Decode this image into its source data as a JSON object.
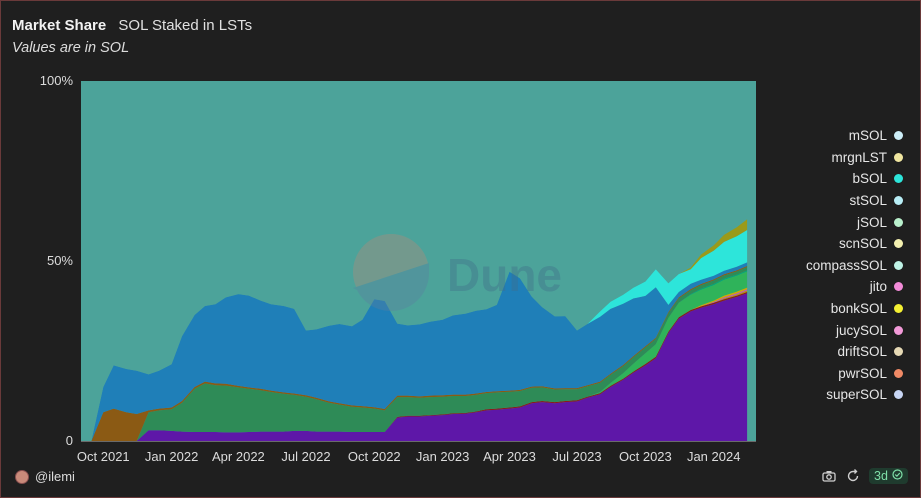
{
  "header": {
    "title": "Market Share",
    "subtitle": "SOL Staked in LSTs",
    "note": "Values are in SOL"
  },
  "watermark": "Dune",
  "footer": {
    "author": "@ilemi",
    "refresh_label": "3d",
    "icons": [
      "camera-icon",
      "refresh-icon",
      "check-circle-icon"
    ]
  },
  "chart_data": {
    "type": "area",
    "stacked_percent": true,
    "x": [
      "2021-09-01",
      "2021-09-15",
      "2021-10-01",
      "2021-10-15",
      "2021-11-01",
      "2021-11-15",
      "2021-12-01",
      "2021-12-15",
      "2022-01-01",
      "2022-01-15",
      "2022-02-01",
      "2022-02-15",
      "2022-03-01",
      "2022-03-15",
      "2022-04-01",
      "2022-04-15",
      "2022-05-01",
      "2022-05-15",
      "2022-06-01",
      "2022-06-15",
      "2022-07-01",
      "2022-07-15",
      "2022-08-01",
      "2022-08-15",
      "2022-09-01",
      "2022-09-15",
      "2022-10-01",
      "2022-10-15",
      "2022-11-01",
      "2022-11-15",
      "2022-12-01",
      "2022-12-15",
      "2023-01-01",
      "2023-01-15",
      "2023-02-01",
      "2023-02-15",
      "2023-03-01",
      "2023-03-15",
      "2023-04-01",
      "2023-04-15",
      "2023-05-01",
      "2023-05-15",
      "2023-06-01",
      "2023-06-15",
      "2023-07-01",
      "2023-07-15",
      "2023-08-01",
      "2023-08-15",
      "2023-09-01",
      "2023-09-15",
      "2023-10-01",
      "2023-10-15",
      "2023-11-01",
      "2023-11-15",
      "2023-12-01",
      "2023-12-15",
      "2024-01-01",
      "2024-01-15",
      "2024-02-01",
      "2024-02-15"
    ],
    "series": [
      {
        "name": "superSOL",
        "color": "#5e17a8",
        "values": [
          0,
          0,
          0,
          0,
          0,
          0,
          3,
          3,
          2.8,
          2.6,
          2.5,
          2.5,
          2.5,
          2.4,
          2.4,
          2.5,
          2.6,
          2.6,
          2.6,
          2.8,
          2.8,
          2.6,
          2.6,
          2.6,
          2.5,
          2.5,
          2.5,
          2.5,
          6.5,
          6.8,
          6.8,
          7,
          7.2,
          7.5,
          7.6,
          8,
          8.5,
          8.7,
          9,
          9.3,
          10.5,
          10.8,
          10.5,
          10.8,
          11,
          12,
          13,
          15,
          17,
          19,
          21,
          23,
          30,
          34,
          36,
          37,
          38,
          39,
          40,
          41
        ]
      },
      {
        "name": "pwrSOL",
        "color": "#8b1a1a",
        "values": [
          0,
          0,
          0,
          0,
          0,
          0,
          0,
          0,
          0,
          0,
          0,
          0,
          0,
          0,
          0,
          0,
          0,
          0,
          0,
          0,
          0,
          0,
          0,
          0,
          0,
          0,
          0,
          0,
          0.2,
          0.2,
          0.2,
          0.2,
          0.2,
          0.2,
          0.2,
          0.2,
          0.3,
          0.3,
          0.3,
          0.3,
          0.3,
          0.3,
          0.3,
          0.3,
          0.3,
          0.3,
          0.3,
          0.3,
          0.3,
          0.3,
          0.4,
          0.4,
          0.4,
          0.4,
          0.4,
          0.4,
          0.4,
          0.4,
          0.4,
          0.4
        ]
      },
      {
        "name": "driftSOL",
        "color": "#b7950b",
        "values": [
          0,
          0,
          0,
          0,
          0,
          0,
          0,
          0,
          0,
          0,
          0,
          0,
          0,
          0,
          0,
          0,
          0,
          0,
          0,
          0,
          0,
          0,
          0,
          0,
          0,
          0,
          0,
          0,
          0,
          0,
          0,
          0,
          0,
          0,
          0,
          0,
          0,
          0,
          0,
          0,
          0,
          0,
          0,
          0,
          0,
          0,
          0,
          0,
          0,
          0,
          0,
          0,
          0,
          0,
          0,
          0,
          0,
          0.2,
          0.3,
          0.4
        ]
      },
      {
        "name": "jucySOL",
        "color": "#c44dc4",
        "values": [
          0,
          0,
          0,
          0,
          0,
          0,
          0,
          0,
          0,
          0,
          0,
          0,
          0,
          0,
          0,
          0,
          0,
          0,
          0,
          0,
          0,
          0,
          0,
          0,
          0,
          0,
          0,
          0,
          0,
          0,
          0,
          0,
          0,
          0,
          0,
          0,
          0,
          0,
          0,
          0,
          0,
          0,
          0,
          0,
          0,
          0,
          0,
          0,
          0,
          0,
          0,
          0,
          0,
          0,
          0,
          0,
          0.2,
          0.3,
          0.3,
          0.3
        ]
      },
      {
        "name": "bonkSOL",
        "color": "#d4a800",
        "values": [
          0,
          0,
          0,
          0,
          0,
          0,
          0,
          0,
          0,
          0,
          0,
          0,
          0,
          0,
          0,
          0,
          0,
          0,
          0,
          0,
          0,
          0,
          0,
          0,
          0,
          0,
          0,
          0,
          0,
          0,
          0,
          0,
          0,
          0,
          0,
          0,
          0,
          0,
          0,
          0,
          0,
          0,
          0,
          0,
          0,
          0,
          0,
          0,
          0,
          0,
          0,
          0,
          0,
          0,
          0,
          0.3,
          0.4,
          0.5,
          0.5,
          0.5
        ]
      },
      {
        "name": "jito",
        "color": "#2fb35a",
        "values": [
          0,
          0,
          0,
          0,
          0,
          0,
          0,
          0,
          0,
          0,
          0,
          0,
          0,
          0,
          0,
          0,
          0,
          0,
          0,
          0,
          0,
          0,
          0,
          0,
          0,
          0,
          0,
          0,
          0,
          0,
          0,
          0,
          0,
          0,
          0,
          0,
          0,
          0,
          0,
          0,
          0,
          0,
          0,
          0,
          0,
          0,
          0.3,
          0.8,
          1.5,
          2.2,
          3,
          3.5,
          3.8,
          4,
          4.2,
          4.3,
          4.3,
          4.4,
          4.4,
          4.5
        ]
      },
      {
        "name": "compassSOL",
        "color": "#00a676",
        "values": [
          0,
          0,
          0,
          0,
          0,
          0,
          0,
          0,
          0,
          0,
          0,
          0,
          0,
          0,
          0,
          0,
          0,
          0,
          0,
          0,
          0,
          0,
          0,
          0,
          0,
          0,
          0,
          0,
          0,
          0,
          0,
          0,
          0,
          0,
          0,
          0,
          0,
          0,
          0,
          0,
          0,
          0,
          0,
          0,
          0,
          0,
          0,
          0,
          0,
          0,
          0,
          0,
          0,
          0,
          0.2,
          0.3,
          0.3,
          0.3,
          0.3,
          0.3
        ]
      },
      {
        "name": "scnSOL",
        "color": "#2e8b57",
        "values": [
          0,
          0,
          0,
          0,
          0,
          0,
          5,
          5.5,
          6,
          8,
          12,
          13.5,
          13,
          13,
          12.5,
          12,
          11.5,
          11,
          10.5,
          10,
          9.5,
          9,
          8,
          7.5,
          7,
          6.8,
          6.5,
          6,
          5.5,
          5.2,
          5,
          5,
          4.9,
          4.8,
          4.7,
          4.6,
          4.5,
          4.5,
          4.4,
          4.3,
          4,
          3.8,
          3.5,
          3.3,
          3.1,
          2.9,
          2.6,
          2.3,
          2,
          1.8,
          1.6,
          1.5,
          1.3,
          1.2,
          1.1,
          1,
          1,
          0.9,
          0.9,
          0.9
        ]
      },
      {
        "name": "jSOL",
        "color": "#8b5a14",
        "values": [
          0,
          0,
          8,
          9,
          8,
          7.5,
          0.5,
          0.5,
          0.5,
          0.5,
          0.5,
          0.5,
          0.5,
          0.5,
          0.4,
          0.4,
          0.4,
          0.4,
          0.4,
          0.4,
          0.4,
          0.4,
          0.4,
          0.4,
          0.4,
          0.4,
          0.4,
          0.4,
          0.4,
          0.4,
          0.4,
          0.4,
          0.4,
          0.4,
          0.4,
          0.4,
          0.3,
          0.3,
          0.3,
          0.3,
          0.3,
          0.3,
          0.3,
          0.3,
          0.3,
          0.3,
          0.3,
          0.3,
          0.3,
          0.3,
          0.3,
          0.3,
          0.3,
          0.3,
          0.3,
          0.3,
          0.3,
          0.3,
          0.3,
          0.3
        ]
      },
      {
        "name": "stSOL",
        "color": "#1f7fb8",
        "values": [
          0,
          0,
          7,
          12,
          12,
          12,
          10,
          10.5,
          12,
          18,
          20,
          21,
          22,
          24,
          25.5,
          25.5,
          24.5,
          24,
          24,
          23.5,
          18,
          19,
          21,
          22,
          22,
          24,
          30,
          30,
          20,
          19.5,
          20,
          20.5,
          21,
          22,
          22.5,
          23,
          23,
          24,
          33,
          31,
          25,
          22,
          20,
          20,
          16,
          17,
          18,
          18,
          17,
          16,
          14,
          14,
          2,
          1.5,
          1.5,
          1.2,
          1,
          1,
          1,
          1
        ]
      },
      {
        "name": "bSOL",
        "color": "#2de5da",
        "values": [
          0,
          0,
          0,
          0,
          0,
          0,
          0,
          0,
          0,
          0,
          0,
          0,
          0,
          0,
          0,
          0,
          0,
          0,
          0,
          0,
          0,
          0,
          0,
          0,
          0,
          0,
          0,
          0,
          0,
          0,
          0,
          0,
          0,
          0,
          0,
          0,
          0,
          0,
          0,
          0,
          0,
          0,
          0,
          0,
          0,
          0,
          1.5,
          2,
          2.5,
          3,
          4,
          5,
          6,
          5,
          4,
          6,
          7,
          8,
          8.5,
          9
        ]
      },
      {
        "name": "mrgnLST",
        "color": "#9a9a1a",
        "values": [
          0,
          0,
          0,
          0,
          0,
          0,
          0,
          0,
          0,
          0,
          0,
          0,
          0,
          0,
          0,
          0,
          0,
          0,
          0,
          0,
          0,
          0,
          0,
          0,
          0,
          0,
          0,
          0,
          0,
          0,
          0,
          0,
          0,
          0,
          0,
          0,
          0,
          0,
          0,
          0,
          0,
          0,
          0,
          0,
          0,
          0,
          0,
          0,
          0,
          0,
          0,
          0,
          0,
          0,
          0.5,
          1,
          1.5,
          2,
          2.5,
          3
        ]
      },
      {
        "name": "mSOL",
        "color": "#4ca39a",
        "values": [
          100,
          100,
          85,
          79,
          80,
          80.5,
          81.5,
          80.5,
          78.7,
          70.9,
          65,
          62.5,
          62,
          60.1,
          59.7,
          59.6,
          61,
          62,
          62.5,
          63.3,
          69.3,
          69,
          68,
          67.5,
          68.1,
          66.3,
          60.6,
          61.1,
          67.4,
          67.9,
          67.6,
          66.9,
          66.3,
          64.9,
          64.6,
          63.8,
          63.4,
          62.2,
          52.6,
          54.1,
          59.9,
          62.8,
          65.4,
          65.3,
          69.3,
          67.9,
          63.9,
          60.7,
          58.9,
          57.8,
          56.1,
          53,
          55.7,
          53.6,
          50.9,
          47.2,
          45.3,
          42.8,
          40.6,
          38.6
        ]
      }
    ],
    "ylim": [
      0,
      100
    ],
    "y_ticks": [
      "0",
      "50%",
      "100%"
    ],
    "x_ticks": [
      "Oct 2021",
      "Jan 2022",
      "Apr 2022",
      "Jul 2022",
      "Oct 2022",
      "Jan 2023",
      "Apr 2023",
      "Jul 2023",
      "Oct 2023",
      "Jan 2024"
    ],
    "legend": [
      "mSOL",
      "mrgnLST",
      "bSOL",
      "stSOL",
      "jSOL",
      "scnSOL",
      "compassSOL",
      "jito",
      "bonkSOL",
      "jucySOL",
      "driftSOL",
      "pwrSOL",
      "superSOL"
    ],
    "legend_colors": [
      "#cdeef8",
      "#f0e6a0",
      "#2de5da",
      "#b8eef6",
      "#b9f0cc",
      "#f3f0b0",
      "#bff3e6",
      "#f28bd8",
      "#f4f033",
      "#f29ad8",
      "#e6d9b5",
      "#f08a66",
      "#c8d6f4"
    ],
    "legend_position": "right",
    "grid": false
  }
}
